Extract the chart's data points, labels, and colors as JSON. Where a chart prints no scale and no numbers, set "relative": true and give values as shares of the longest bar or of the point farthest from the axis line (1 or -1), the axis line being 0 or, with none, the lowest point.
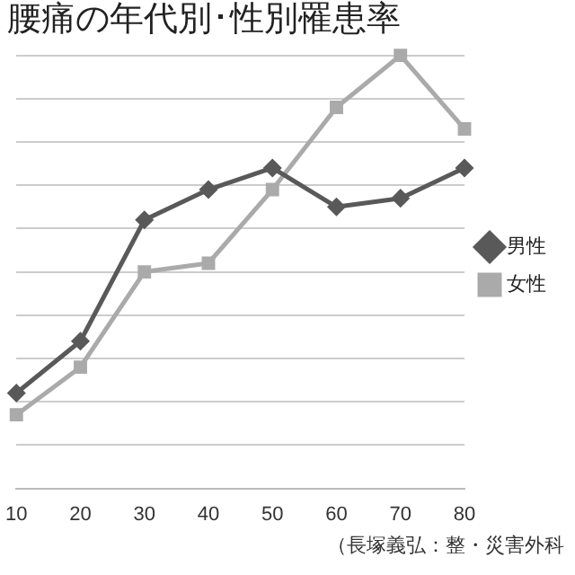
{
  "chart_data": {
    "type": "line",
    "title": "腰痛の年代別･性別罹患率",
    "categories": [
      "10",
      "20",
      "30",
      "40",
      "50",
      "60",
      "70",
      "80"
    ],
    "relative": true,
    "grid": "y",
    "legend": "right",
    "series": [
      {
        "name": "男性",
        "color": "#595959",
        "marker": "diamond",
        "values": [
          0.22,
          0.34,
          0.62,
          0.69,
          0.74,
          0.65,
          0.67,
          0.74
        ]
      },
      {
        "name": "女性",
        "color": "#aaaaaa",
        "marker": "square",
        "values": [
          0.17,
          0.28,
          0.5,
          0.52,
          0.69,
          0.88,
          1,
          0.83
        ]
      }
    ],
    "annotations": [
      "（長塚義弘：整・災害外科"
    ]
  }
}
